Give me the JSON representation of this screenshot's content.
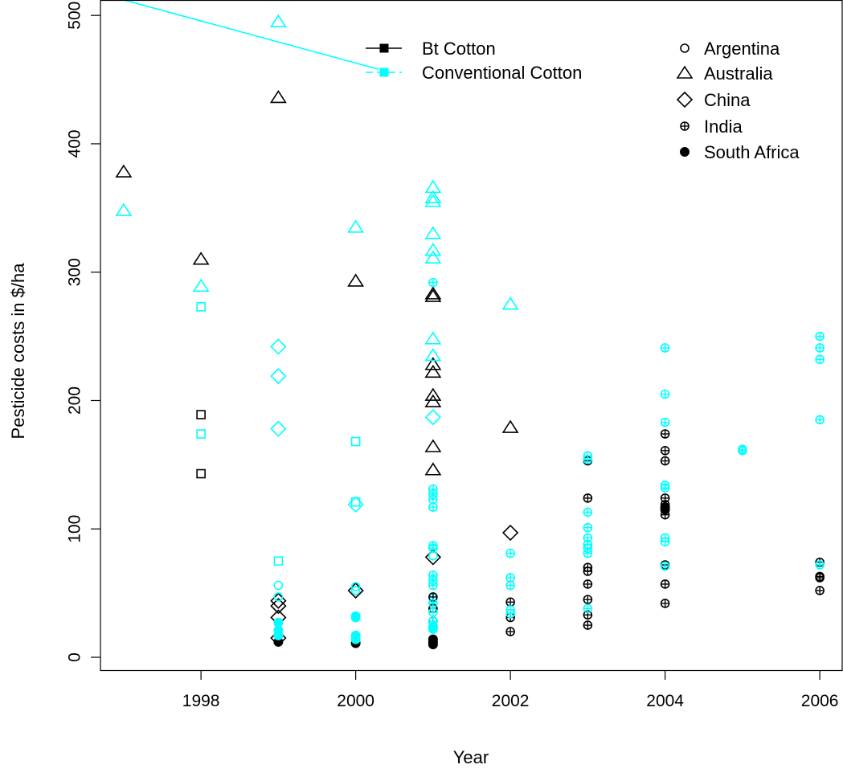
{
  "chart_data": {
    "type": "scatter",
    "title": "",
    "xlabel": "Year",
    "ylabel": "Pesticide costs in $/ha",
    "xlim": [
      1996.7,
      2006.3
    ],
    "ylim": [
      -10,
      512
    ],
    "x_ticks": [
      1998,
      2000,
      2002,
      2004,
      2006
    ],
    "y_ticks": [
      0,
      100,
      200,
      300,
      400,
      500
    ],
    "grid": false,
    "colors": {
      "bt": "#000000",
      "conventional": "#00ffff"
    },
    "legend_type": {
      "placement": "top-center",
      "entries": [
        {
          "label": "Bt Cotton",
          "key": "bt"
        },
        {
          "label": "Conventional Cotton",
          "key": "conventional"
        }
      ]
    },
    "legend_country": {
      "placement": "top-right",
      "entries": [
        {
          "label": "Argentina",
          "symbol": "circle"
        },
        {
          "label": "Australia",
          "symbol": "triangle"
        },
        {
          "label": "China",
          "symbol": "diamond"
        },
        {
          "label": "India",
          "symbol": "circle-plus"
        },
        {
          "label": "South Africa",
          "symbol": "filled-circle"
        }
      ]
    },
    "series": [
      {
        "type": "bt",
        "country": "Australia",
        "points": [
          [
            1997,
            378
          ],
          [
            1998,
            310
          ],
          [
            1999,
            436
          ],
          [
            2000,
            293
          ],
          [
            2001,
            283
          ],
          [
            2001,
            281
          ],
          [
            2001,
            228
          ],
          [
            2001,
            222
          ],
          [
            2001,
            204
          ],
          [
            2001,
            199
          ],
          [
            2001,
            164
          ],
          [
            2001,
            146
          ],
          [
            2002,
            179
          ]
        ]
      },
      {
        "type": "conventional",
        "country": "Australia",
        "points": [
          [
            1997,
            348
          ],
          [
            1998,
            289
          ],
          [
            1999,
            495
          ],
          [
            2000,
            335
          ],
          [
            2001,
            366
          ],
          [
            2001,
            358
          ],
          [
            2001,
            355
          ],
          [
            2001,
            330
          ],
          [
            2001,
            317
          ],
          [
            2001,
            311
          ],
          [
            2001,
            248
          ],
          [
            2001,
            235
          ],
          [
            2002,
            275
          ]
        ]
      },
      {
        "type": "bt",
        "country": "China",
        "points": [
          [
            1999,
            44
          ],
          [
            1999,
            40
          ],
          [
            1999,
            31
          ],
          [
            1999,
            15
          ],
          [
            2000,
            52
          ],
          [
            2001,
            78
          ],
          [
            2002,
            97
          ]
        ]
      },
      {
        "type": "conventional",
        "country": "China",
        "points": [
          [
            1999,
            242
          ],
          [
            1999,
            219
          ],
          [
            1999,
            178
          ],
          [
            2000,
            119
          ],
          [
            2001,
            187
          ]
        ]
      },
      {
        "type": "bt",
        "country": "Argentina",
        "shape": "square",
        "points": [
          [
            1998,
            189
          ],
          [
            1998,
            143
          ]
        ]
      },
      {
        "type": "conventional",
        "country": "Argentina",
        "shape": "square",
        "points": [
          [
            1998,
            273
          ],
          [
            1998,
            174
          ],
          [
            1999,
            75
          ],
          [
            2000,
            168
          ],
          [
            2000,
            121
          ]
        ]
      },
      {
        "type": "conventional",
        "country": "Argentina",
        "points": [
          [
            1999,
            56
          ],
          [
            1999,
            47
          ],
          [
            2000,
            55
          ],
          [
            2000,
            52
          ],
          [
            2001,
            79
          ],
          [
            2001,
            46
          ]
        ]
      },
      {
        "type": "bt",
        "country": "India",
        "points": [
          [
            2001,
            47
          ],
          [
            2001,
            38
          ],
          [
            2001,
            28
          ],
          [
            2002,
            43
          ],
          [
            2002,
            31
          ],
          [
            2002,
            20
          ],
          [
            2003,
            153
          ],
          [
            2003,
            124
          ],
          [
            2003,
            70
          ],
          [
            2003,
            67
          ],
          [
            2003,
            57
          ],
          [
            2003,
            45
          ],
          [
            2003,
            33
          ],
          [
            2003,
            25
          ],
          [
            2004,
            174
          ],
          [
            2004,
            161
          ],
          [
            2004,
            153
          ],
          [
            2004,
            124
          ],
          [
            2004,
            119
          ],
          [
            2004,
            111
          ],
          [
            2004,
            72
          ],
          [
            2004,
            57
          ],
          [
            2004,
            42
          ],
          [
            2006,
            74
          ],
          [
            2006,
            63
          ],
          [
            2006,
            62
          ],
          [
            2006,
            52
          ]
        ]
      },
      {
        "type": "conventional",
        "country": "India",
        "points": [
          [
            2001,
            292
          ],
          [
            2001,
            131
          ],
          [
            2001,
            127
          ],
          [
            2001,
            123
          ],
          [
            2001,
            117
          ],
          [
            2001,
            87
          ],
          [
            2001,
            85
          ],
          [
            2001,
            64
          ],
          [
            2001,
            60
          ],
          [
            2001,
            56
          ],
          [
            2001,
            42
          ],
          [
            2001,
            35
          ],
          [
            2001,
            28
          ],
          [
            2001,
            24
          ],
          [
            2002,
            81
          ],
          [
            2002,
            62
          ],
          [
            2002,
            56
          ],
          [
            2002,
            37
          ],
          [
            2002,
            34
          ],
          [
            2003,
            157
          ],
          [
            2003,
            154
          ],
          [
            2003,
            113
          ],
          [
            2003,
            101
          ],
          [
            2003,
            93
          ],
          [
            2003,
            88
          ],
          [
            2003,
            85
          ],
          [
            2003,
            81
          ],
          [
            2003,
            38
          ],
          [
            2004,
            241
          ],
          [
            2004,
            205
          ],
          [
            2004,
            183
          ],
          [
            2004,
            134
          ],
          [
            2004,
            132
          ],
          [
            2004,
            93
          ],
          [
            2004,
            90
          ],
          [
            2004,
            71
          ],
          [
            2005,
            162
          ],
          [
            2005,
            161
          ],
          [
            2006,
            250
          ],
          [
            2006,
            241
          ],
          [
            2006,
            232
          ],
          [
            2006,
            185
          ],
          [
            2006,
            72
          ]
        ]
      },
      {
        "type": "bt",
        "country": "South Africa",
        "points": [
          [
            1999,
            12
          ],
          [
            2000,
            11
          ],
          [
            2001,
            14
          ],
          [
            2001,
            12
          ],
          [
            2001,
            10
          ],
          [
            2004,
            117
          ],
          [
            2004,
            115
          ]
        ]
      },
      {
        "type": "conventional",
        "country": "South Africa",
        "points": [
          [
            1999,
            27
          ],
          [
            1999,
            21
          ],
          [
            1999,
            17
          ],
          [
            2000,
            32
          ],
          [
            2000,
            31
          ],
          [
            2000,
            17
          ],
          [
            2000,
            14
          ],
          [
            2001,
            24
          ],
          [
            2001,
            22
          ]
        ]
      }
    ],
    "connector_line": {
      "type": "conventional",
      "from": [
        1996.7,
        517
      ],
      "to": [
        2000.3,
        458
      ]
    }
  }
}
